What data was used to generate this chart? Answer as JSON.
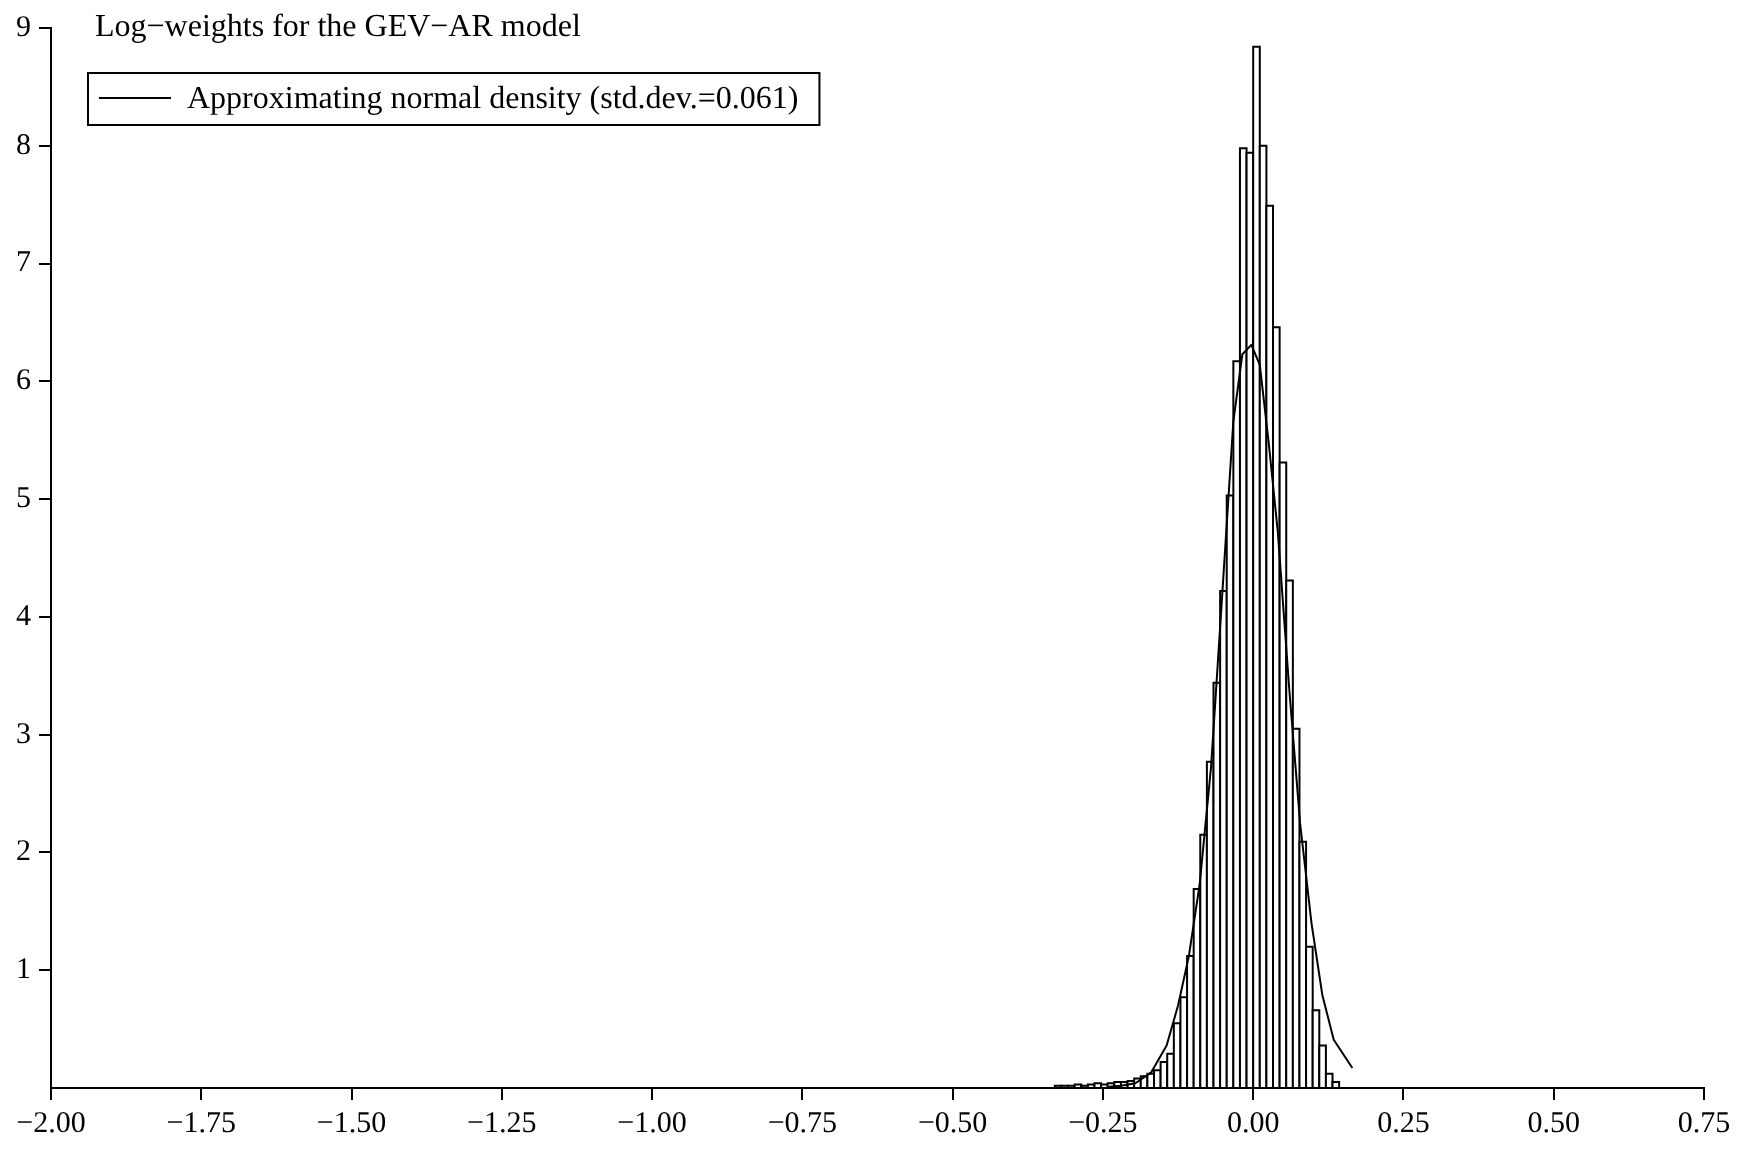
{
  "chart_data": {
    "type": "histogram",
    "title": "Log−weights for the GEV−AR model",
    "bins": [
      -0.33,
      -0.319,
      -0.308,
      -0.297,
      -0.286,
      -0.275,
      -0.264,
      -0.253,
      -0.242,
      -0.231,
      -0.22,
      -0.209,
      -0.198,
      -0.187,
      -0.176,
      -0.165,
      -0.154,
      -0.143,
      -0.132,
      -0.121,
      -0.11,
      -0.099,
      -0.088,
      -0.077,
      -0.066,
      -0.055,
      -0.044,
      -0.033,
      -0.022,
      -0.011,
      0,
      0.011,
      0.022,
      0.033,
      0.044,
      0.055,
      0.066,
      0.077,
      0.088,
      0.099,
      0.11,
      0.121,
      0.132,
      0.143
    ],
    "values": [
      0.02,
      0.02,
      0.02,
      0.03,
      0.02,
      0.03,
      0.04,
      0.03,
      0.04,
      0.05,
      0.05,
      0.06,
      0.08,
      0.1,
      0.12,
      0.15,
      0.22,
      0.29,
      0.55,
      0.77,
      1.12,
      1.69,
      2.15,
      2.77,
      3.44,
      4.22,
      5.03,
      6.17,
      7.98,
      7.94,
      8.84,
      8.0,
      7.49,
      6.46,
      5.31,
      4.31,
      3.05,
      2.09,
      1.2,
      0.66,
      0.36,
      0.12,
      0.05
    ],
    "color": "#ffffff",
    "series": [
      {
        "name": "Approximating normal density (std.dev.=0.061)",
        "type": "line",
        "color": "#000000",
        "x": [
          -0.24,
          -0.22,
          -0.196,
          -0.17,
          -0.144,
          -0.125,
          -0.107,
          -0.089,
          -0.07,
          -0.052,
          -0.033,
          -0.018,
          -0.003,
          0.011,
          0.026,
          0.041,
          0.06,
          0.078,
          0.097,
          0.115,
          0.134,
          0.165
        ],
        "values": [
          0.01,
          0.02,
          0.04,
          0.13,
          0.36,
          0.7,
          1.12,
          1.73,
          2.73,
          4.15,
          5.66,
          6.23,
          6.31,
          6.14,
          5.47,
          4.72,
          3.39,
          2.25,
          1.4,
          0.79,
          0.41,
          0.17
        ]
      }
    ],
    "legend": "top left",
    "xlim": [
      -2.0,
      0.75
    ],
    "xticks": [
      {
        "value": -2,
        "label": "−2.00"
      },
      {
        "value": -1.75,
        "label": "−1.75"
      },
      {
        "value": -1.5,
        "label": "−1.50"
      },
      {
        "value": -1.25,
        "label": "−1.25"
      },
      {
        "value": -1,
        "label": "−1.00"
      },
      {
        "value": -0.75,
        "label": "−0.75"
      },
      {
        "value": -0.5,
        "label": "−0.50"
      },
      {
        "value": -0.25,
        "label": "−0.25"
      },
      {
        "value": 0,
        "label": "0.00"
      },
      {
        "value": 0.25,
        "label": "0.25"
      },
      {
        "value": 0.5,
        "label": "0.50"
      },
      {
        "value": 0.75,
        "label": "0.75"
      }
    ],
    "ylim": [
      0,
      9
    ],
    "yticks": [
      1,
      2,
      3,
      4,
      5,
      6,
      7,
      8,
      9
    ]
  }
}
